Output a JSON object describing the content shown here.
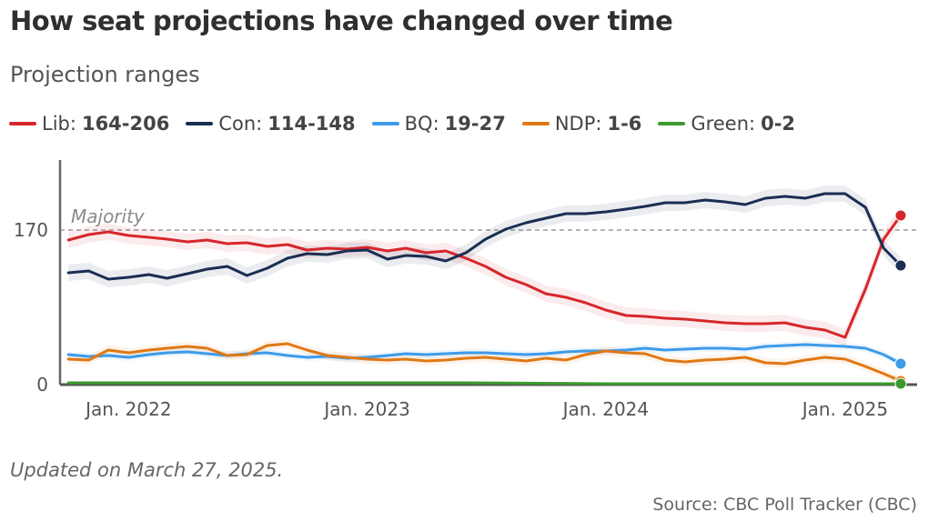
{
  "title": "How seat projections have changed over time",
  "subtitle": "Projection ranges",
  "legend": [
    {
      "party": "Lib",
      "range": "164-206",
      "color": "#d7262c"
    },
    {
      "party": "Con",
      "range": "114-148",
      "color": "#1a2e52"
    },
    {
      "party": "BQ",
      "range": "19-27",
      "color": "#3d9be9"
    },
    {
      "party": "NDP",
      "range": "1-6",
      "color": "#e07814"
    },
    {
      "party": "Green",
      "range": "0-2",
      "color": "#3c9a2f"
    }
  ],
  "footer": {
    "updated": "Updated on March 27, 2025.",
    "source": "Source: CBC Poll Tracker (CBC)"
  },
  "chart_data": {
    "type": "line",
    "title": "How seat projections have changed over time",
    "subtitle": "Projection ranges",
    "xlabel": "",
    "ylabel": "",
    "x_ticks": [
      "Jan. 2022",
      "Jan. 2023",
      "Jan. 2024",
      "Jan. 2025"
    ],
    "y_ticks": [
      0,
      170
    ],
    "ylim": [
      0,
      210
    ],
    "xlim": [
      "2021-10-01",
      "2025-03-27"
    ],
    "annotation": {
      "label": "Majority",
      "value": 170
    },
    "grid": false,
    "legend_position": "top",
    "series": [
      {
        "name": "Lib",
        "color": "#d7262c",
        "band": "range",
        "points": [
          [
            "2021-10-01",
            159
          ],
          [
            "2021-11-01",
            165
          ],
          [
            "2021-12-01",
            168
          ],
          [
            "2022-01-01",
            164
          ],
          [
            "2022-02-01",
            162
          ],
          [
            "2022-03-01",
            160
          ],
          [
            "2022-04-01",
            157
          ],
          [
            "2022-05-01",
            159
          ],
          [
            "2022-06-01",
            155
          ],
          [
            "2022-07-01",
            156
          ],
          [
            "2022-08-01",
            152
          ],
          [
            "2022-09-01",
            154
          ],
          [
            "2022-10-01",
            148
          ],
          [
            "2022-11-01",
            150
          ],
          [
            "2022-12-01",
            149
          ],
          [
            "2023-01-01",
            151
          ],
          [
            "2023-02-01",
            147
          ],
          [
            "2023-03-01",
            150
          ],
          [
            "2023-04-01",
            145
          ],
          [
            "2023-05-01",
            147
          ],
          [
            "2023-06-01",
            139
          ],
          [
            "2023-07-01",
            130
          ],
          [
            "2023-08-01",
            118
          ],
          [
            "2023-09-01",
            110
          ],
          [
            "2023-10-01",
            100
          ],
          [
            "2023-11-01",
            96
          ],
          [
            "2023-12-01",
            90
          ],
          [
            "2024-01-01",
            82
          ],
          [
            "2024-02-01",
            76
          ],
          [
            "2024-03-01",
            75
          ],
          [
            "2024-04-01",
            73
          ],
          [
            "2024-05-01",
            72
          ],
          [
            "2024-06-01",
            70
          ],
          [
            "2024-07-01",
            68
          ],
          [
            "2024-08-01",
            67
          ],
          [
            "2024-09-01",
            67
          ],
          [
            "2024-10-01",
            68
          ],
          [
            "2024-11-01",
            63
          ],
          [
            "2024-12-01",
            60
          ],
          [
            "2025-01-01",
            52
          ],
          [
            "2025-02-01",
            105
          ],
          [
            "2025-03-01",
            160
          ],
          [
            "2025-03-27",
            186
          ]
        ]
      },
      {
        "name": "Con",
        "color": "#1a2e52",
        "band": "range",
        "points": [
          [
            "2021-10-01",
            123
          ],
          [
            "2021-11-01",
            125
          ],
          [
            "2021-12-01",
            116
          ],
          [
            "2022-01-01",
            118
          ],
          [
            "2022-02-01",
            121
          ],
          [
            "2022-03-01",
            117
          ],
          [
            "2022-04-01",
            122
          ],
          [
            "2022-05-01",
            127
          ],
          [
            "2022-06-01",
            130
          ],
          [
            "2022-07-01",
            120
          ],
          [
            "2022-08-01",
            128
          ],
          [
            "2022-09-01",
            139
          ],
          [
            "2022-10-01",
            144
          ],
          [
            "2022-11-01",
            143
          ],
          [
            "2022-12-01",
            147
          ],
          [
            "2023-01-01",
            148
          ],
          [
            "2023-02-01",
            138
          ],
          [
            "2023-03-01",
            142
          ],
          [
            "2023-04-01",
            141
          ],
          [
            "2023-05-01",
            136
          ],
          [
            "2023-06-01",
            145
          ],
          [
            "2023-07-01",
            160
          ],
          [
            "2023-08-01",
            171
          ],
          [
            "2023-09-01",
            178
          ],
          [
            "2023-10-01",
            183
          ],
          [
            "2023-11-01",
            188
          ],
          [
            "2023-12-01",
            188
          ],
          [
            "2024-01-01",
            190
          ],
          [
            "2024-02-01",
            193
          ],
          [
            "2024-03-01",
            196
          ],
          [
            "2024-04-01",
            200
          ],
          [
            "2024-05-01",
            200
          ],
          [
            "2024-06-01",
            203
          ],
          [
            "2024-07-01",
            201
          ],
          [
            "2024-08-01",
            198
          ],
          [
            "2024-09-01",
            205
          ],
          [
            "2024-10-01",
            207
          ],
          [
            "2024-11-01",
            205
          ],
          [
            "2024-12-01",
            210
          ],
          [
            "2025-01-01",
            210
          ],
          [
            "2025-02-01",
            195
          ],
          [
            "2025-03-01",
            150
          ],
          [
            "2025-03-27",
            131
          ]
        ]
      },
      {
        "name": "BQ",
        "color": "#3d9be9",
        "band": "range",
        "points": [
          [
            "2021-10-01",
            33
          ],
          [
            "2021-11-01",
            31
          ],
          [
            "2021-12-01",
            32
          ],
          [
            "2022-01-01",
            30
          ],
          [
            "2022-02-01",
            33
          ],
          [
            "2022-03-01",
            35
          ],
          [
            "2022-04-01",
            36
          ],
          [
            "2022-05-01",
            34
          ],
          [
            "2022-06-01",
            32
          ],
          [
            "2022-07-01",
            34
          ],
          [
            "2022-08-01",
            35
          ],
          [
            "2022-09-01",
            32
          ],
          [
            "2022-10-01",
            30
          ],
          [
            "2022-11-01",
            31
          ],
          [
            "2022-12-01",
            29
          ],
          [
            "2023-01-01",
            30
          ],
          [
            "2023-02-01",
            32
          ],
          [
            "2023-03-01",
            34
          ],
          [
            "2023-04-01",
            33
          ],
          [
            "2023-05-01",
            34
          ],
          [
            "2023-06-01",
            35
          ],
          [
            "2023-07-01",
            35
          ],
          [
            "2023-08-01",
            34
          ],
          [
            "2023-09-01",
            33
          ],
          [
            "2023-10-01",
            34
          ],
          [
            "2023-11-01",
            36
          ],
          [
            "2023-12-01",
            37
          ],
          [
            "2024-01-01",
            37
          ],
          [
            "2024-02-01",
            38
          ],
          [
            "2024-03-01",
            40
          ],
          [
            "2024-04-01",
            38
          ],
          [
            "2024-05-01",
            39
          ],
          [
            "2024-06-01",
            40
          ],
          [
            "2024-07-01",
            40
          ],
          [
            "2024-08-01",
            39
          ],
          [
            "2024-09-01",
            42
          ],
          [
            "2024-10-01",
            43
          ],
          [
            "2024-11-01",
            44
          ],
          [
            "2024-12-01",
            43
          ],
          [
            "2025-01-01",
            42
          ],
          [
            "2025-02-01",
            40
          ],
          [
            "2025-03-01",
            33
          ],
          [
            "2025-03-27",
            23
          ]
        ]
      },
      {
        "name": "NDP",
        "color": "#e07814",
        "band": "range",
        "points": [
          [
            "2021-10-01",
            28
          ],
          [
            "2021-11-01",
            27
          ],
          [
            "2021-12-01",
            38
          ],
          [
            "2022-01-01",
            35
          ],
          [
            "2022-02-01",
            38
          ],
          [
            "2022-03-01",
            40
          ],
          [
            "2022-04-01",
            42
          ],
          [
            "2022-05-01",
            40
          ],
          [
            "2022-06-01",
            32
          ],
          [
            "2022-07-01",
            33
          ],
          [
            "2022-08-01",
            43
          ],
          [
            "2022-09-01",
            45
          ],
          [
            "2022-10-01",
            38
          ],
          [
            "2022-11-01",
            32
          ],
          [
            "2022-12-01",
            30
          ],
          [
            "2023-01-01",
            28
          ],
          [
            "2023-02-01",
            27
          ],
          [
            "2023-03-01",
            28
          ],
          [
            "2023-04-01",
            26
          ],
          [
            "2023-05-01",
            27
          ],
          [
            "2023-06-01",
            29
          ],
          [
            "2023-07-01",
            30
          ],
          [
            "2023-08-01",
            28
          ],
          [
            "2023-09-01",
            26
          ],
          [
            "2023-10-01",
            29
          ],
          [
            "2023-11-01",
            27
          ],
          [
            "2023-12-01",
            33
          ],
          [
            "2024-01-01",
            37
          ],
          [
            "2024-02-01",
            35
          ],
          [
            "2024-03-01",
            34
          ],
          [
            "2024-04-01",
            27
          ],
          [
            "2024-05-01",
            25
          ],
          [
            "2024-06-01",
            27
          ],
          [
            "2024-07-01",
            28
          ],
          [
            "2024-08-01",
            30
          ],
          [
            "2024-09-01",
            24
          ],
          [
            "2024-10-01",
            23
          ],
          [
            "2024-11-01",
            27
          ],
          [
            "2024-12-01",
            30
          ],
          [
            "2025-01-01",
            28
          ],
          [
            "2025-02-01",
            20
          ],
          [
            "2025-03-01",
            12
          ],
          [
            "2025-03-27",
            4
          ]
        ]
      },
      {
        "name": "Green",
        "color": "#3c9a2f",
        "band": "range",
        "points": [
          [
            "2021-10-01",
            2
          ],
          [
            "2022-06-01",
            2
          ],
          [
            "2023-01-01",
            2
          ],
          [
            "2023-06-01",
            2
          ],
          [
            "2024-01-01",
            1
          ],
          [
            "2024-06-01",
            1
          ],
          [
            "2025-01-01",
            1
          ],
          [
            "2025-03-27",
            1
          ]
        ]
      }
    ]
  }
}
